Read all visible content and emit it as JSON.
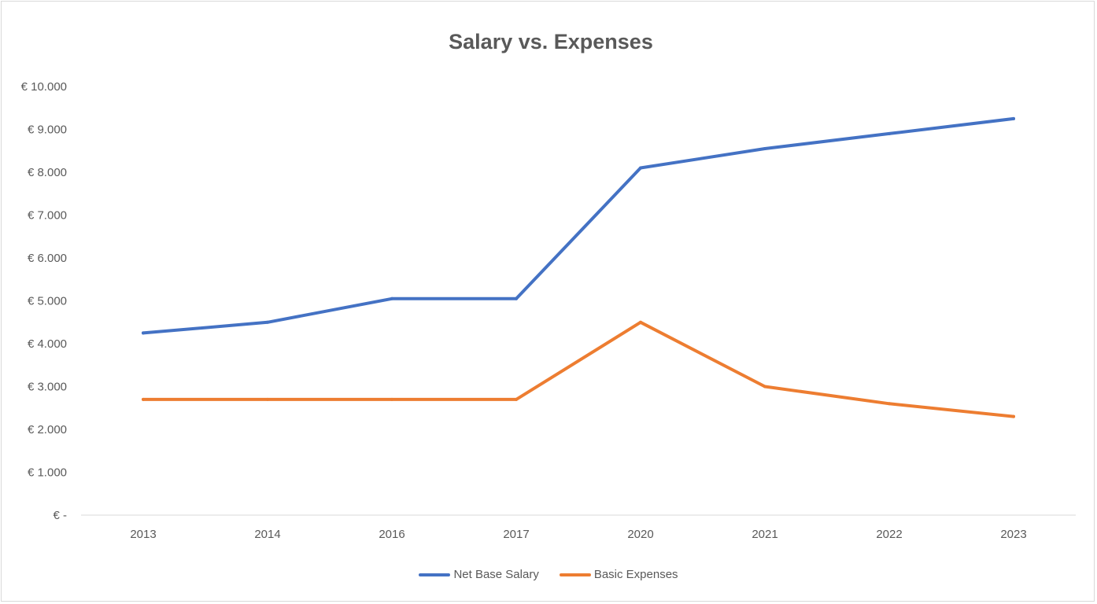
{
  "chart_data": {
    "type": "line",
    "title": "Salary vs. Expenses",
    "xlabel": "",
    "ylabel": "",
    "categories": [
      "2013",
      "2014",
      "2016",
      "2017",
      "2020",
      "2021",
      "2022",
      "2023"
    ],
    "series": [
      {
        "name": "Net Base Salary",
        "color": "#4472c4",
        "values": [
          4250,
          4500,
          5050,
          5050,
          8100,
          8550,
          8900,
          9250
        ]
      },
      {
        "name": "Basic Expenses",
        "color": "#ed7d31",
        "values": [
          2700,
          2700,
          2700,
          2700,
          4500,
          3000,
          2600,
          2300
        ]
      }
    ],
    "ylim": [
      0,
      10000
    ],
    "yticks": [
      0,
      1000,
      2000,
      3000,
      4000,
      5000,
      6000,
      7000,
      8000,
      9000,
      10000
    ],
    "ytick_labels": [
      "€ -",
      "€ 1.000",
      "€ 2.000",
      "€ 3.000",
      "€ 4.000",
      "€ 5.000",
      "€ 6.000",
      "€ 7.000",
      "€ 8.000",
      "€ 9.000",
      "€ 10.000"
    ],
    "grid": false,
    "legend_position": "bottom"
  }
}
